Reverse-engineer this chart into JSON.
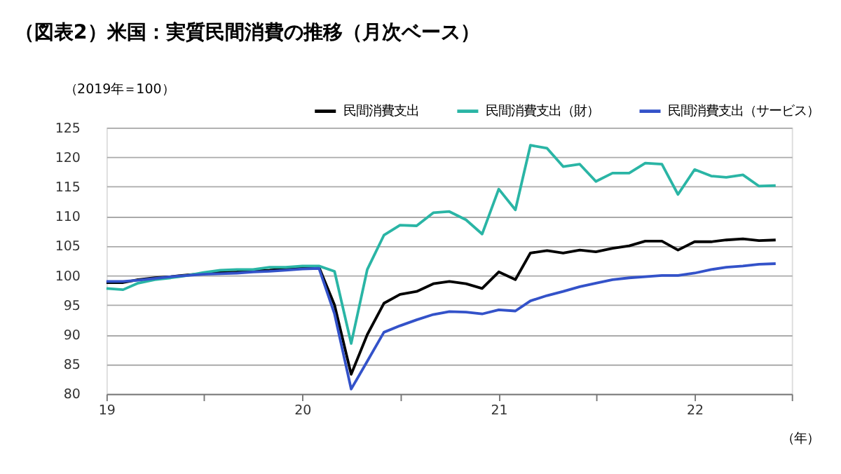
{
  "chart_data": {
    "type": "line",
    "title": "（図表2）米国：実質民間消費の推移（月次ベース）",
    "ylabel": "（2019年＝100）",
    "xlabel": "（年）",
    "x": [
      "2019-01",
      "2019-02",
      "2019-03",
      "2019-04",
      "2019-05",
      "2019-06",
      "2019-07",
      "2019-08",
      "2019-09",
      "2019-10",
      "2019-11",
      "2019-12",
      "2020-01",
      "2020-02",
      "2020-03",
      "2020-04",
      "2020-05",
      "2020-06",
      "2020-07",
      "2020-08",
      "2020-09",
      "2020-10",
      "2020-11",
      "2020-12",
      "2021-01",
      "2021-02",
      "2021-03",
      "2021-04",
      "2021-05",
      "2021-06",
      "2021-07",
      "2021-08",
      "2021-09",
      "2021-10",
      "2021-11",
      "2021-12",
      "2022-01",
      "2022-02",
      "2022-03",
      "2022-04",
      "2022-05",
      "2022-06"
    ],
    "series": [
      {
        "name": "民間消費支出",
        "color": "#000000",
        "values": [
          98.8,
          98.8,
          99.3,
          99.6,
          99.8,
          100.1,
          100.3,
          100.5,
          100.6,
          100.8,
          100.9,
          101.1,
          101.3,
          101.4,
          95.0,
          83.3,
          90.0,
          95.3,
          96.8,
          97.3,
          98.6,
          99.0,
          98.6,
          97.8,
          100.6,
          99.3,
          103.8,
          104.2,
          103.8,
          104.3,
          104.0,
          104.6,
          105.0,
          105.8,
          105.8,
          104.3,
          105.7,
          105.7,
          106.0,
          106.2,
          105.9,
          106.0
        ]
      },
      {
        "name": "民間消費支出（財）",
        "color": "#2ab5a5",
        "values": [
          97.8,
          97.6,
          98.7,
          99.3,
          99.6,
          100.0,
          100.5,
          100.9,
          101.0,
          101.0,
          101.4,
          101.4,
          101.6,
          101.6,
          100.7,
          88.5,
          101.0,
          106.8,
          108.5,
          108.4,
          110.6,
          110.8,
          109.4,
          107.0,
          114.6,
          111.1,
          122.0,
          121.5,
          118.4,
          118.8,
          115.9,
          117.3,
          117.3,
          119.0,
          118.8,
          113.7,
          117.9,
          116.8,
          116.6,
          117.0,
          115.1,
          115.2
        ]
      },
      {
        "name": "民間消費支出（サービス）",
        "color": "#3352c9",
        "values": [
          99.0,
          99.0,
          99.2,
          99.5,
          99.8,
          100.0,
          100.2,
          100.3,
          100.4,
          100.6,
          100.7,
          100.9,
          101.1,
          101.2,
          93.5,
          80.8,
          85.5,
          90.4,
          91.5,
          92.5,
          93.4,
          93.9,
          93.8,
          93.5,
          94.2,
          94.0,
          95.7,
          96.6,
          97.3,
          98.1,
          98.7,
          99.3,
          99.6,
          99.8,
          100.0,
          100.0,
          100.4,
          101.0,
          101.4,
          101.6,
          101.9,
          102.0
        ]
      }
    ],
    "xlim": [
      "2019-01",
      "2022-07"
    ],
    "xticks": [
      {
        "value": "2019-01",
        "label": "19"
      },
      {
        "value": "2019-07",
        "label": null
      },
      {
        "value": "2020-01",
        "label": "20"
      },
      {
        "value": "2020-07",
        "label": null
      },
      {
        "value": "2021-01",
        "label": "21"
      },
      {
        "value": "2021-07",
        "label": null
      },
      {
        "value": "2022-01",
        "label": "22"
      },
      {
        "value": "2022-07",
        "label": null
      }
    ],
    "ylim": [
      80,
      125
    ],
    "yticks": [
      80,
      85,
      90,
      95,
      100,
      105,
      110,
      115,
      120,
      125
    ],
    "grid": "y",
    "legend": "top right",
    "marker": "none",
    "line_style": "solid"
  }
}
